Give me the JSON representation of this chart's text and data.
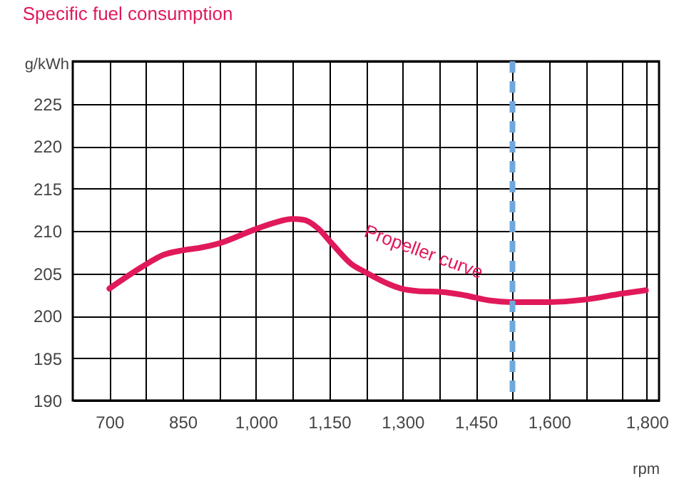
{
  "chart_data": {
    "type": "line",
    "title": "Specific fuel consumption",
    "xlabel": "rpm",
    "ylabel": "g/kWh",
    "x": [
      700,
      768,
      812,
      849,
      885,
      923,
      999,
      1040,
      1074,
      1098,
      1127,
      1157,
      1195,
      1225,
      1273,
      1297,
      1331,
      1380,
      1428,
      1477,
      1523,
      1599,
      1674,
      1749,
      1798
    ],
    "series": [
      {
        "color": "#e0195a",
        "values": [
          203.2,
          205.8,
          207.2,
          207.7,
          208.0,
          208.5,
          210.2,
          211.0,
          211.4,
          211.3,
          210.3,
          208.4,
          206.1,
          205.1,
          203.7,
          203.2,
          202.9,
          202.8,
          202.4,
          201.8,
          201.6,
          201.6,
          201.9,
          202.6,
          203.0
        ]
      }
    ],
    "xlim": [
      625,
      1825
    ],
    "xticks": [
      {
        "value": 700,
        "label": "700"
      },
      {
        "value": 775,
        "label": null
      },
      {
        "value": 850,
        "label": "850"
      },
      {
        "value": 925,
        "label": null
      },
      {
        "value": 1000,
        "label": "1,000"
      },
      {
        "value": 1075,
        "label": null
      },
      {
        "value": 1150,
        "label": "1,150"
      },
      {
        "value": 1225,
        "label": null
      },
      {
        "value": 1300,
        "label": "1,300"
      },
      {
        "value": 1375,
        "label": null
      },
      {
        "value": 1450,
        "label": "1,450"
      },
      {
        "value": 1525,
        "label": null
      },
      {
        "value": 1600,
        "label": "1,600"
      },
      {
        "value": 1675,
        "label": null
      },
      {
        "value": 1750,
        "label": null
      },
      {
        "value": 1800,
        "label": "1,800"
      }
    ],
    "ylim": [
      190,
      230
    ],
    "yticks": [
      190,
      195,
      200,
      205,
      210,
      215,
      220,
      225,
      {
        "value": 230,
        "label": null
      }
    ],
    "grid": true,
    "marker": "none",
    "line_style": "solid",
    "ref_lines": [
      {
        "axis": "x",
        "value": 1525,
        "color": "#6fa8dc",
        "line_style": "dashed"
      }
    ],
    "annotations": [
      "Propeller curve"
    ]
  }
}
